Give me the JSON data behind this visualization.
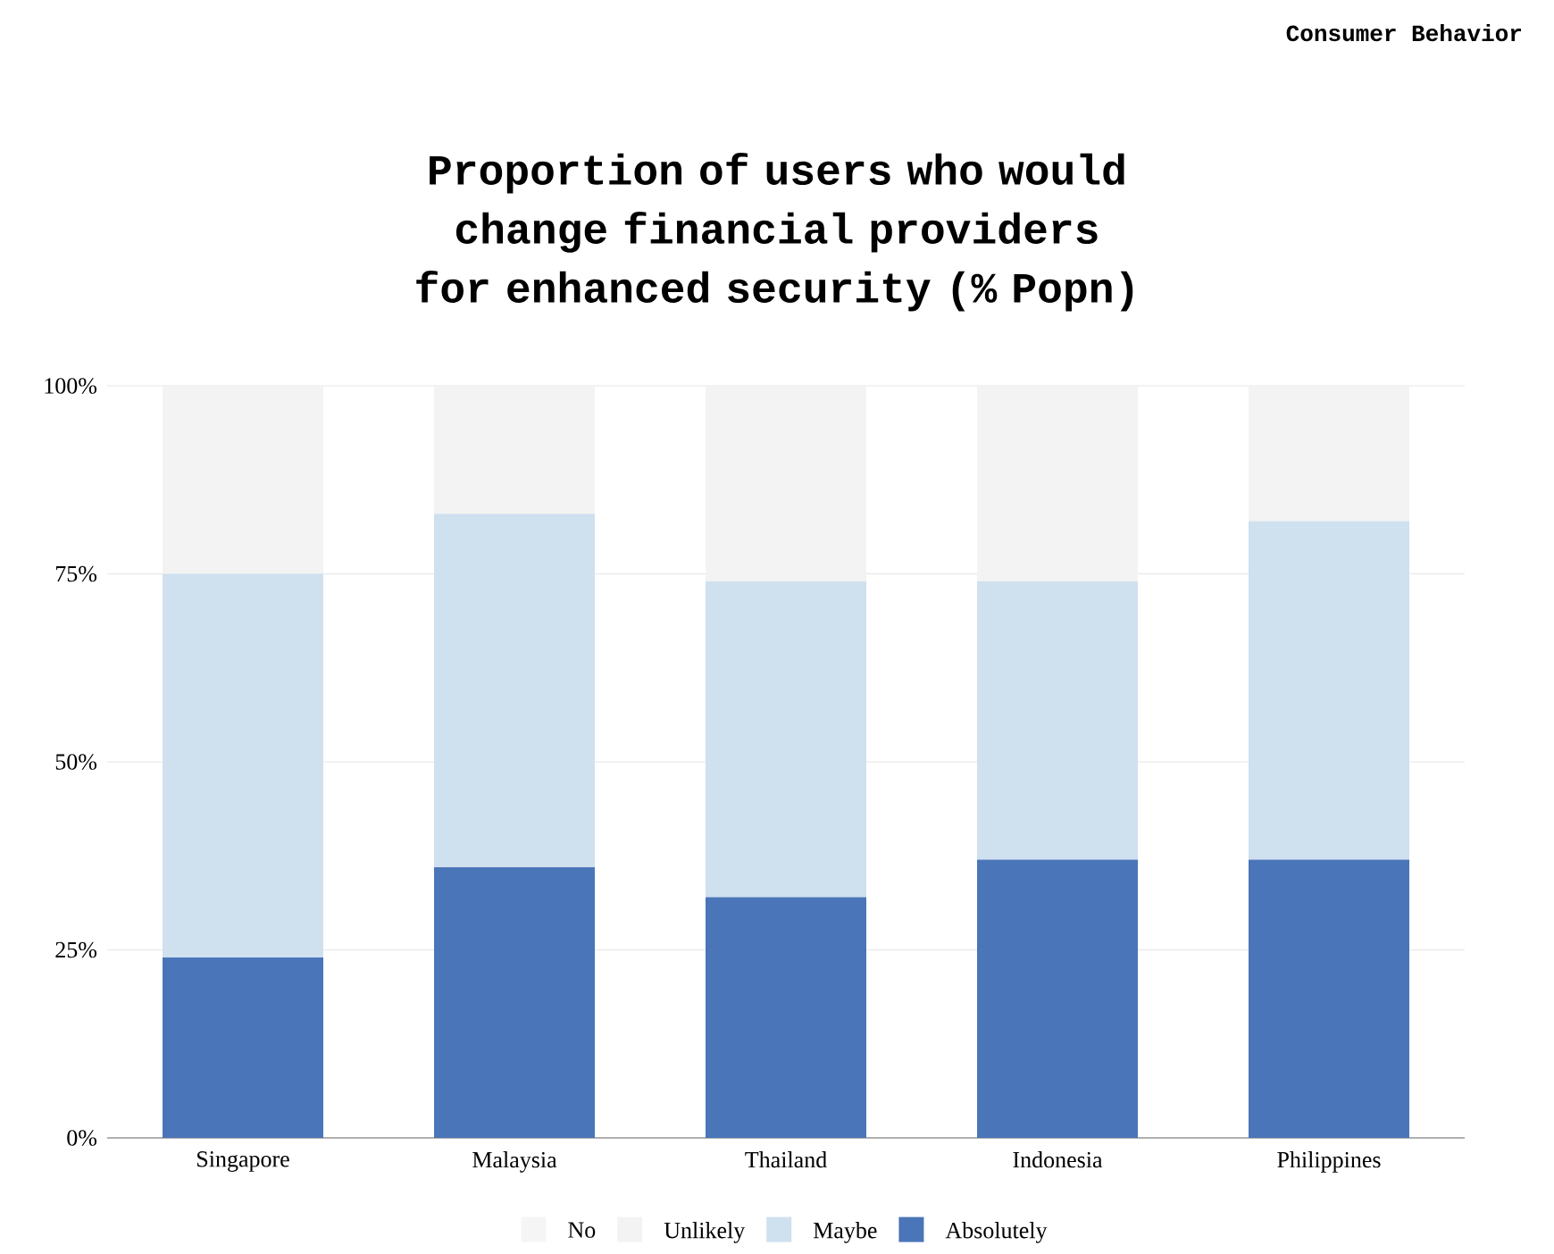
{
  "chart_data": {
    "type": "bar",
    "stacked": true,
    "title": "Proportion of users who would change financial providers for enhanced security (% Popn)",
    "annotations": [
      "Consumer Behavior"
    ],
    "categories": [
      "Singapore",
      "Malaysia",
      "Thailand",
      "Indonesia",
      "Philippines"
    ],
    "series": [
      {
        "name": "Absolutely",
        "color": "#4a75b8",
        "values": [
          24,
          36,
          32,
          37,
          37
        ]
      },
      {
        "name": "Maybe",
        "color": "#cfe0ef",
        "values": [
          51,
          47,
          42,
          37,
          45
        ]
      },
      {
        "name": "Unlikely",
        "color": "#f3f3f3",
        "values": [
          25,
          17,
          26,
          26,
          18
        ]
      },
      {
        "name": "No",
        "color": "#f5f5f5",
        "values": [
          null,
          null,
          null,
          null,
          null
        ]
      }
    ],
    "ylim": [
      0,
      100
    ],
    "yticks": [
      {
        "value": 0,
        "label": "0%"
      },
      {
        "value": 25,
        "label": "25%"
      },
      {
        "value": 50,
        "label": "50%"
      },
      {
        "value": 75,
        "label": "75%"
      },
      {
        "value": 100,
        "label": "100%"
      }
    ],
    "grid": "y",
    "legend": "bottom"
  }
}
